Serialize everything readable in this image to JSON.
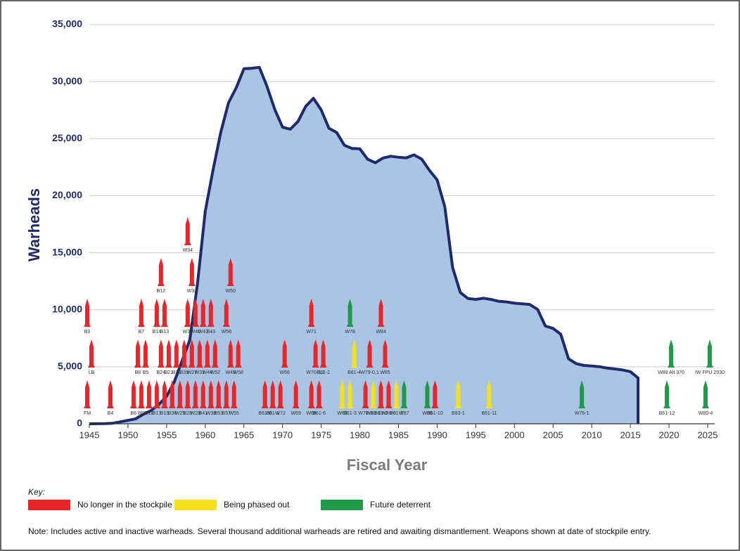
{
  "chart_data": {
    "type": "area",
    "x": [
      1945,
      1946,
      1947,
      1948,
      1949,
      1950,
      1951,
      1952,
      1953,
      1954,
      1955,
      1956,
      1957,
      1958,
      1959,
      1960,
      1961,
      1962,
      1963,
      1964,
      1965,
      1966,
      1967,
      1968,
      1969,
      1970,
      1971,
      1972,
      1973,
      1974,
      1975,
      1976,
      1977,
      1978,
      1979,
      1980,
      1981,
      1982,
      1983,
      1984,
      1985,
      1986,
      1987,
      1988,
      1989,
      1990,
      1991,
      1992,
      1993,
      1994,
      1995,
      1996,
      1997,
      1998,
      1999,
      2000,
      2001,
      2002,
      2003,
      2004,
      2005,
      2006,
      2007,
      2008,
      2009,
      2010,
      2011,
      2012,
      2013,
      2014,
      2015,
      2016
    ],
    "series": [
      {
        "color": "#aac4e4",
        "values": [
          2,
          9,
          13,
          50,
          170,
          299,
          438,
          841,
          1169,
          1703,
          2422,
          3692,
          5543,
          7345,
          12298,
          18638,
          22229,
          25540,
          28133,
          29463,
          31139,
          31175,
          31255,
          29561,
          27552,
          26008,
          25830,
          26516,
          27835,
          28537,
          27519,
          25914,
          25542,
          24418,
          24138,
          24104,
          23208,
          22886,
          23305,
          23459,
          23368,
          23317,
          23575,
          23205,
          22217,
          21392,
          19008,
          13708,
          11511,
          10979,
          10904,
          11011,
          10903,
          10732,
          10685,
          10577,
          10526,
          10457,
          10027,
          8570,
          8360,
          7853,
          5709,
          5273,
          5113,
          5066,
          5008,
          4881,
          4804,
          4717,
          4571,
          4018
        ]
      }
    ],
    "line_color": "#1f2a6b",
    "xlim": [
      1945,
      2025
    ],
    "xticks": [
      1945,
      1950,
      1955,
      1960,
      1965,
      1970,
      1975,
      1980,
      1985,
      1990,
      1995,
      2000,
      2005,
      2010,
      2015,
      2020,
      2025
    ],
    "ylim": [
      0,
      35000
    ],
    "yticks": [
      0,
      {
        "value": 5000,
        "label": "5,000"
      },
      {
        "value": 10000,
        "label": "10,000"
      },
      {
        "value": 15000,
        "label": "15,000"
      },
      {
        "value": 20000,
        "label": "20,000"
      },
      {
        "value": 25000,
        "label": "25,000"
      },
      {
        "value": 30000,
        "label": "30,000"
      },
      {
        "value": 35000,
        "label": "35,000"
      }
    ],
    "grid": true,
    "ylabel": "Warheads",
    "xlabel": "Fiscal Year",
    "key": {
      "title": "Key:",
      "items": [
        {
          "name": "No longer in the stockpile",
          "color": "#e8262a"
        },
        {
          "name": "Being phased out",
          "color": "#f5e11c"
        },
        {
          "name": "Future deterrent",
          "color": "#1f9a48"
        }
      ]
    },
    "warheads": [
      {
        "name": "FM",
        "year": 1945,
        "color": "#e8262a"
      },
      {
        "name": "LB",
        "year": 1945,
        "color": "#e8262a"
      },
      {
        "name": "B3",
        "year": 1945,
        "color": "#e8262a"
      },
      {
        "name": "B4",
        "year": 1948,
        "color": "#e8262a"
      },
      {
        "name": "B6",
        "year": 1951,
        "color": "#e8262a"
      },
      {
        "name": "B8",
        "year": 1951,
        "color": "#e8262a"
      },
      {
        "name": "W9",
        "year": 1952,
        "color": "#e8262a"
      },
      {
        "name": "B5",
        "year": 1952,
        "color": "#e8262a"
      },
      {
        "name": "B7",
        "year": 1952,
        "color": "#e8262a"
      },
      {
        "name": "B18",
        "year": 1953,
        "color": "#e8262a"
      },
      {
        "name": "B17",
        "year": 1954,
        "color": "#e8262a"
      },
      {
        "name": "B24",
        "year": 1954,
        "color": "#e8262a"
      },
      {
        "name": "B14",
        "year": 1954,
        "color": "#e8262a"
      },
      {
        "name": "B12",
        "year": 1954,
        "color": "#e8262a"
      },
      {
        "name": "B15",
        "year": 1955,
        "color": "#e8262a"
      },
      {
        "name": "B21",
        "year": 1955,
        "color": "#e8262a"
      },
      {
        "name": "B13",
        "year": 1955,
        "color": "#e8262a"
      },
      {
        "name": "B36",
        "year": 1956,
        "color": "#e8262a"
      },
      {
        "name": "B11",
        "year": 1956,
        "color": "#e8262a"
      },
      {
        "name": "W25",
        "year": 1957,
        "color": "#e8262a"
      },
      {
        "name": "B39",
        "year": 1957,
        "color": "#e8262a"
      },
      {
        "name": "B28",
        "year": 1958,
        "color": "#e8262a"
      },
      {
        "name": "W27",
        "year": 1958,
        "color": "#e8262a"
      },
      {
        "name": "W30",
        "year": 1958,
        "color": "#e8262a"
      },
      {
        "name": "W33",
        "year": 1958,
        "color": "#e8262a"
      },
      {
        "name": "W34",
        "year": 1958,
        "color": "#e8262a"
      },
      {
        "name": "W28",
        "year": 1959,
        "color": "#e8262a"
      },
      {
        "name": "W31",
        "year": 1959,
        "color": "#e8262a"
      },
      {
        "name": "W40",
        "year": 1959,
        "color": "#e8262a"
      },
      {
        "name": "B41",
        "year": 1960,
        "color": "#e8262a"
      },
      {
        "name": "W44",
        "year": 1960,
        "color": "#e8262a"
      },
      {
        "name": "W47",
        "year": 1960,
        "color": "#e8262a"
      },
      {
        "name": "W38",
        "year": 1961,
        "color": "#e8262a"
      },
      {
        "name": "W52",
        "year": 1961,
        "color": "#e8262a"
      },
      {
        "name": "B43",
        "year": 1961,
        "color": "#e8262a"
      },
      {
        "name": "B53",
        "year": 1962,
        "color": "#e8262a"
      },
      {
        "name": "B57",
        "year": 1963,
        "color": "#e8262a"
      },
      {
        "name": "W45",
        "year": 1963,
        "color": "#e8262a"
      },
      {
        "name": "W56",
        "year": 1963,
        "color": "#e8262a"
      },
      {
        "name": "W50",
        "year": 1963,
        "color": "#e8262a"
      },
      {
        "name": "W55",
        "year": 1964,
        "color": "#e8262a"
      },
      {
        "name": "W58",
        "year": 1964,
        "color": "#e8262a"
      },
      {
        "name": "B61-0",
        "year": 1968,
        "color": "#e8262a"
      },
      {
        "name": "W72",
        "year": 1970,
        "color": "#e8262a"
      },
      {
        "name": "W66",
        "year": 1970,
        "color": "#e8262a"
      },
      {
        "name": "B61-1",
        "year": 1969,
        "color": "#e8262a"
      },
      {
        "name": "W69",
        "year": 1972,
        "color": "#e8262a"
      },
      {
        "name": "W68",
        "year": 1974,
        "color": "#e8262a"
      },
      {
        "name": "W70-1,2",
        "year": 1974,
        "color": "#e8262a"
      },
      {
        "name": "W71",
        "year": 1974,
        "color": "#e8262a"
      },
      {
        "name": "B61-6",
        "year": 1975,
        "color": "#e8262a"
      },
      {
        "name": "B61-2",
        "year": 1975,
        "color": "#e8262a"
      },
      {
        "name": "W70-3",
        "year": 1981,
        "color": "#e8262a"
      },
      {
        "name": "W79-0,1",
        "year": 1981,
        "color": "#e8262a"
      },
      {
        "name": "B83-0",
        "year": 1983,
        "color": "#e8262a"
      },
      {
        "name": "W85",
        "year": 1983,
        "color": "#e8262a"
      },
      {
        "name": "W84",
        "year": 1983,
        "color": "#e8262a"
      },
      {
        "name": "W80-0",
        "year": 1984,
        "color": "#e8262a"
      },
      {
        "name": "B61-10",
        "year": 1990,
        "color": "#e8262a"
      },
      {
        "name": "W62",
        "year": 1978,
        "color": "#f5e11c"
      },
      {
        "name": "B61-3",
        "year": 1979,
        "color": "#f5e11c"
      },
      {
        "name": "B61-4",
        "year": 1979,
        "color": "#f5e11c"
      },
      {
        "name": "W80-1",
        "year": 1982,
        "color": "#f5e11c"
      },
      {
        "name": "B61-7",
        "year": 1985,
        "color": "#f5e11c"
      },
      {
        "name": "B83-1",
        "year": 1993,
        "color": "#f5e11c"
      },
      {
        "name": "B61-11",
        "year": 1997,
        "color": "#f5e11c"
      },
      {
        "name": "W78",
        "year": 1979,
        "color": "#1f9a48"
      },
      {
        "name": "W87",
        "year": 1986,
        "color": "#1f9a48"
      },
      {
        "name": "W88",
        "year": 1989,
        "color": "#1f9a48"
      },
      {
        "name": "W76-1",
        "year": 2009,
        "color": "#1f9a48"
      },
      {
        "name": "B61-12",
        "year": 2020,
        "color": "#1f9a48"
      },
      {
        "name": "W88 Alt 370",
        "year": 2020,
        "color": "#1f9a48"
      },
      {
        "name": "W80-4",
        "year": 2025,
        "color": "#1f9a48"
      },
      {
        "name": "IW FPU 2030",
        "year": 2025,
        "color": "#1f9a48"
      }
    ],
    "note": "Note:  Includes active and inactive warheads.  Several thousand additional warheads are retired and awaiting dismantlement.  Weapons shown at date of stockpile entry."
  }
}
